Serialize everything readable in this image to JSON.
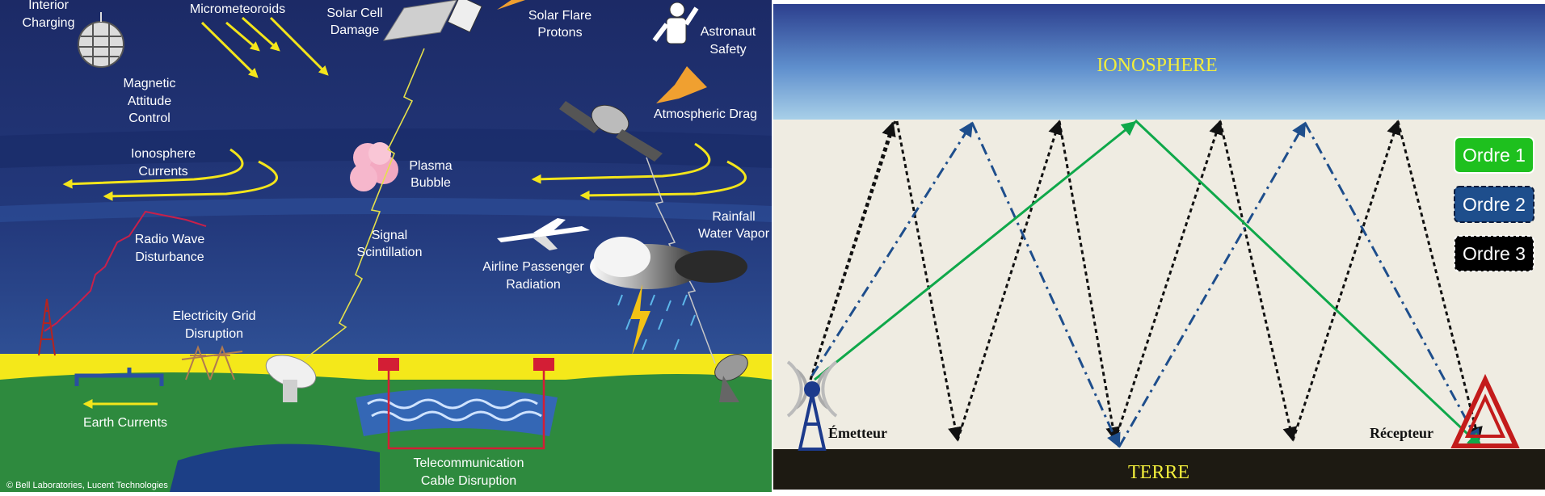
{
  "left_panel": {
    "labels": {
      "interior_charging_1": "Interior",
      "interior_charging_2": "Charging",
      "micrometeoroids": "Micrometeoroids",
      "solar_cell_1": "Solar Cell",
      "solar_cell_2": "Damage",
      "solar_flare_1": "Solar Flare",
      "solar_flare_2": "Protons",
      "astronaut_1": "Astronaut",
      "astronaut_2": "Safety",
      "magnetic_1": "Magnetic",
      "magnetic_2": "Attitude",
      "magnetic_3": "Control",
      "atmospheric_drag": "Atmospheric Drag",
      "ionosphere_currents_1": "Ionosphere",
      "ionosphere_currents_2": "Currents",
      "plasma_bubble_1": "Plasma",
      "plasma_bubble_2": "Bubble",
      "rainfall_1": "Rainfall",
      "rainfall_2": "Water Vapor",
      "radio_wave_1": "Radio Wave",
      "radio_wave_2": "Disturbance",
      "signal_1": "Signal",
      "signal_2": "Scintillation",
      "airline_1": "Airline Passenger",
      "airline_2": "Radiation",
      "grid_1": "Electricity Grid",
      "grid_2": "Disruption",
      "earth_currents": "Earth Currents",
      "telecom_1": "Telecommunication",
      "telecom_2": "Cable Disruption",
      "credit": "© Bell Laboratories, Lucent Technologies"
    },
    "colors": {
      "sky_top": "#1f2f6e",
      "sky_mid": "#2b4c96",
      "ground": "#2e8a3e",
      "yellow": "#f4e81a",
      "arrow_yellow": "#f3e51b",
      "arrow_orange": "#f0a030"
    }
  },
  "right_panel": {
    "ionosphere_label": "IONOSPHERE",
    "ground_label": "TERRE",
    "emitter_label": "Émetteur",
    "receiver_label": "Récepteur",
    "legend": [
      {
        "label": "Ordre 1",
        "color": "#1ec01e"
      },
      {
        "label": "Ordre 2",
        "color": "#1e4e8c"
      },
      {
        "label": "Ordre 3",
        "color": "#000000"
      }
    ],
    "colors": {
      "order1": "#0fa84a",
      "order2": "#1e4e8c",
      "order3": "#111111",
      "label_yellow": "#f2ee3c",
      "ground": "#1d1a12",
      "background": "#efece2"
    }
  }
}
